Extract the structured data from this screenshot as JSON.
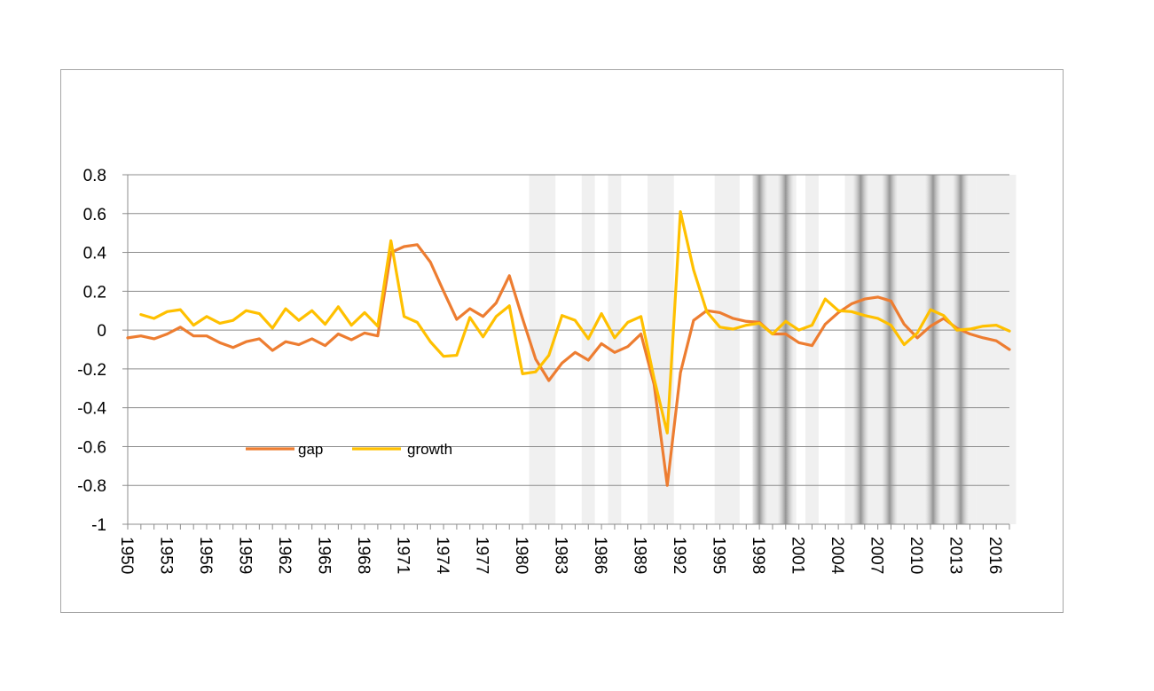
{
  "chart_data": {
    "type": "line",
    "title": "",
    "xlabel": "",
    "ylabel": "",
    "x": [
      1950,
      1951,
      1952,
      1953,
      1954,
      1955,
      1956,
      1957,
      1958,
      1959,
      1960,
      1961,
      1962,
      1963,
      1964,
      1965,
      1966,
      1967,
      1968,
      1969,
      1970,
      1971,
      1972,
      1973,
      1974,
      1975,
      1976,
      1977,
      1978,
      1979,
      1980,
      1981,
      1982,
      1983,
      1984,
      1985,
      1986,
      1987,
      1988,
      1989,
      1990,
      1991,
      1992,
      1993,
      1994,
      1995,
      1996,
      1997,
      1998,
      1999,
      2000,
      2001,
      2002,
      2003,
      2004,
      2005,
      2006,
      2007,
      2008,
      2009,
      2010,
      2011,
      2012,
      2013,
      2014,
      2015,
      2016,
      2017
    ],
    "ylim": [
      -1,
      0.8
    ],
    "yticks": [
      -1,
      -0.8,
      -0.6,
      -0.4,
      -0.2,
      0,
      0.2,
      0.4,
      0.6,
      0.8
    ],
    "yticklabels": [
      "-1",
      "-0.8",
      "-0.6",
      "-0.4",
      "-0.2",
      "0",
      "0.2",
      "0.4",
      "0.6",
      "0.8"
    ],
    "xticklabels": [
      "1950",
      "1953",
      "1956",
      "1959",
      "1962",
      "1965",
      "1968",
      "1971",
      "1974",
      "1977",
      "1980",
      "1983",
      "1986",
      "1989",
      "1992",
      "1995",
      "1998",
      "2001",
      "2004",
      "2007",
      "2010",
      "2013",
      "2016"
    ],
    "grid": true,
    "legend_position": "lower-left inside plot",
    "series": [
      {
        "name": "gap",
        "color": "#ED7D31",
        "values": [
          -0.04,
          -0.03,
          -0.045,
          -0.02,
          0.015,
          -0.03,
          -0.03,
          -0.065,
          -0.09,
          -0.06,
          -0.045,
          -0.105,
          -0.06,
          -0.075,
          -0.045,
          -0.08,
          -0.02,
          -0.05,
          -0.015,
          -0.03,
          0.4,
          0.43,
          0.44,
          0.35,
          0.2,
          0.055,
          0.11,
          0.07,
          0.14,
          0.28,
          0.06,
          -0.15,
          -0.26,
          -0.17,
          -0.115,
          -0.155,
          -0.07,
          -0.115,
          -0.085,
          -0.02,
          -0.28,
          -0.8,
          -0.22,
          0.05,
          0.1,
          0.09,
          0.06,
          0.045,
          0.04,
          -0.02,
          -0.02,
          -0.065,
          -0.08,
          0.03,
          0.09,
          0.135,
          0.16,
          0.17,
          0.15,
          0.03,
          -0.04,
          0.02,
          0.06,
          0.01,
          -0.02,
          -0.04,
          -0.055,
          -0.1
        ]
      },
      {
        "name": "growth",
        "color": "#FFC000",
        "values": [
          null,
          0.08,
          0.06,
          0.095,
          0.105,
          0.025,
          0.07,
          0.035,
          0.05,
          0.1,
          0.085,
          0.01,
          0.11,
          0.05,
          0.1,
          0.03,
          0.12,
          0.025,
          0.09,
          0.02,
          0.46,
          0.07,
          0.04,
          -0.06,
          -0.135,
          -0.13,
          0.065,
          -0.035,
          0.07,
          0.125,
          -0.225,
          -0.215,
          -0.13,
          0.075,
          0.05,
          -0.045,
          0.085,
          -0.04,
          0.04,
          0.07,
          -0.25,
          -0.53,
          0.61,
          0.31,
          0.095,
          0.015,
          0.005,
          0.025,
          0.035,
          -0.02,
          0.045,
          0.0,
          0.025,
          0.16,
          0.1,
          0.095,
          0.075,
          0.06,
          0.025,
          -0.075,
          -0.015,
          0.105,
          0.075,
          0.0,
          0.005,
          0.02,
          0.025,
          -0.005
        ]
      }
    ],
    "shaded_bands": [
      {
        "start": 1980.5,
        "end": 1982.5
      },
      {
        "start": 1984.5,
        "end": 1985.5
      },
      {
        "start": 1986.5,
        "end": 1987.5
      },
      {
        "start": 1989.5,
        "end": 1991.5
      },
      {
        "start": 1994.6,
        "end": 1996.5
      },
      {
        "start": 1997.5,
        "end": 2000.8
      },
      {
        "start": 2001.5,
        "end": 2002.5
      },
      {
        "start": 2004.5,
        "end": 2008.5
      },
      {
        "start": 2008.5,
        "end": 2011.5
      },
      {
        "start": 2011.5,
        "end": 2014.5
      },
      {
        "start": 2014.5,
        "end": 2017.5
      }
    ],
    "dark_stripes": [
      1998.0,
      2000.0,
      2005.7,
      2007.9,
      2011.2,
      2013.3
    ],
    "band_color": "#F0F0F0",
    "grid_color": "#8C8C8C",
    "axis_color": "#8C8C8C"
  }
}
